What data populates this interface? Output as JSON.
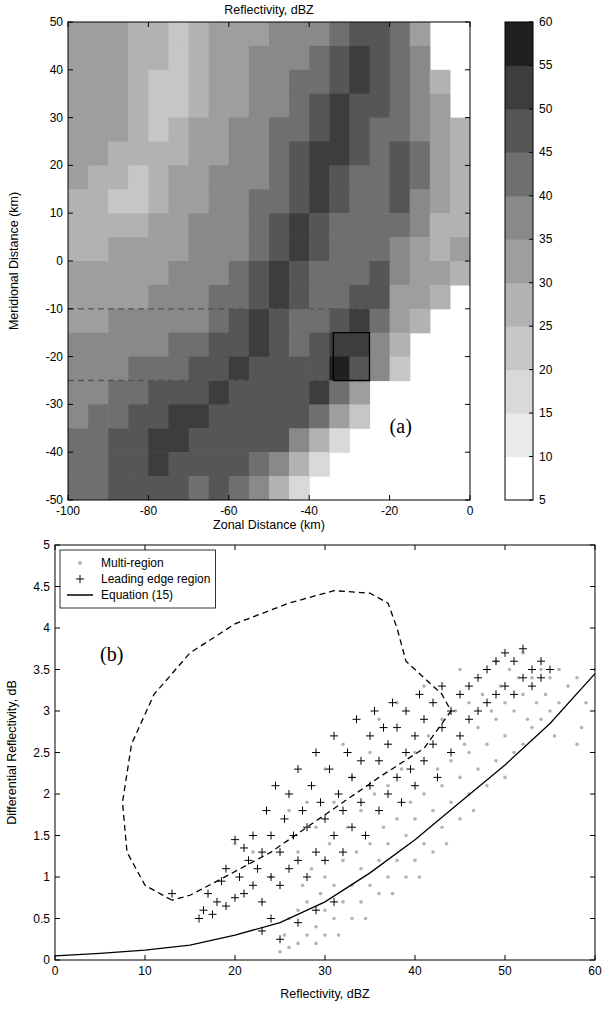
{
  "chart_data": [
    {
      "type": "heatmap",
      "title": "Reflectivity, dBZ",
      "x_label": "Zonal Distance (km)",
      "y_label": "Meridional Distance (km)",
      "annotation": "(a)",
      "xlim": [
        -100,
        0
      ],
      "ylim": [
        -50,
        50
      ],
      "xticks": [
        -100,
        -80,
        -60,
        -40,
        -20,
        0
      ],
      "yticks": [
        -50,
        -40,
        -30,
        -20,
        -10,
        0,
        10,
        20,
        30,
        40,
        50
      ],
      "cells": [
        [
          32,
          30,
          30,
          28,
          25,
          22,
          25,
          30,
          32,
          33,
          35,
          35,
          38,
          42,
          48,
          45,
          40,
          30,
          null,
          null
        ],
        [
          32,
          32,
          30,
          28,
          25,
          22,
          25,
          30,
          33,
          35,
          35,
          38,
          40,
          45,
          50,
          48,
          40,
          35,
          null,
          null
        ],
        [
          33,
          32,
          30,
          27,
          22,
          20,
          25,
          30,
          33,
          35,
          37,
          40,
          42,
          48,
          50,
          45,
          42,
          35,
          25,
          null
        ],
        [
          33,
          33,
          30,
          25,
          22,
          22,
          27,
          32,
          33,
          35,
          38,
          40,
          45,
          50,
          48,
          45,
          40,
          35,
          30,
          null
        ],
        [
          33,
          33,
          30,
          25,
          22,
          25,
          30,
          32,
          35,
          37,
          40,
          42,
          48,
          52,
          48,
          42,
          40,
          38,
          30,
          25
        ],
        [
          32,
          30,
          28,
          25,
          25,
          28,
          30,
          33,
          35,
          38,
          40,
          45,
          50,
          50,
          45,
          42,
          45,
          40,
          30,
          25
        ],
        [
          30,
          28,
          25,
          22,
          25,
          30,
          32,
          35,
          35,
          38,
          42,
          47,
          52,
          48,
          42,
          40,
          45,
          42,
          32,
          28
        ],
        [
          28,
          25,
          22,
          22,
          27,
          30,
          33,
          35,
          37,
          40,
          42,
          48,
          50,
          45,
          40,
          42,
          45,
          38,
          30,
          25
        ],
        [
          27,
          25,
          25,
          27,
          30,
          32,
          35,
          35,
          38,
          40,
          45,
          50,
          48,
          42,
          40,
          42,
          40,
          35,
          28,
          25
        ],
        [
          28,
          28,
          30,
          30,
          32,
          33,
          35,
          37,
          38,
          42,
          47,
          50,
          45,
          40,
          40,
          42,
          38,
          30,
          28,
          30
        ],
        [
          30,
          30,
          32,
          32,
          33,
          35,
          35,
          38,
          40,
          45,
          50,
          48,
          42,
          40,
          42,
          45,
          35,
          30,
          30,
          28
        ],
        [
          32,
          32,
          33,
          33,
          35,
          35,
          37,
          40,
          42,
          48,
          50,
          45,
          40,
          42,
          48,
          45,
          32,
          30,
          28,
          null
        ],
        [
          33,
          33,
          35,
          35,
          35,
          37,
          38,
          42,
          45,
          50,
          48,
          42,
          42,
          48,
          50,
          40,
          30,
          28,
          null,
          null
        ],
        [
          35,
          35,
          35,
          37,
          38,
          40,
          42,
          45,
          48,
          50,
          45,
          42,
          45,
          50,
          52,
          38,
          28,
          null,
          null,
          null
        ],
        [
          35,
          37,
          38,
          40,
          40,
          42,
          45,
          48,
          50,
          48,
          45,
          45,
          48,
          55,
          45,
          35,
          22,
          null,
          null,
          null
        ],
        [
          37,
          38,
          40,
          42,
          45,
          47,
          48,
          50,
          48,
          47,
          45,
          48,
          50,
          42,
          30,
          null,
          null,
          null,
          null,
          null
        ],
        [
          38,
          40,
          42,
          45,
          48,
          50,
          50,
          48,
          47,
          45,
          47,
          48,
          40,
          30,
          20,
          null,
          null,
          null,
          null,
          null
        ],
        [
          40,
          42,
          45,
          48,
          50,
          52,
          48,
          47,
          45,
          45,
          45,
          38,
          28,
          18,
          null,
          null,
          null,
          null,
          null,
          null
        ],
        [
          40,
          42,
          45,
          48,
          50,
          48,
          45,
          45,
          45,
          42,
          35,
          25,
          15,
          null,
          null,
          null,
          null,
          null,
          null,
          null
        ],
        [
          40,
          42,
          45,
          48,
          48,
          45,
          43,
          45,
          42,
          35,
          25,
          15,
          null,
          null,
          null,
          null,
          null,
          null,
          null,
          null
        ]
      ],
      "colorbar": {
        "range": [
          5,
          60
        ],
        "ticks": [
          5,
          10,
          15,
          20,
          25,
          30,
          35,
          40,
          45,
          50,
          55,
          60
        ],
        "colors": [
          "#ffffff",
          "#ebebeb",
          "#d9d9d9",
          "#c6c6c6",
          "#b2b2b2",
          "#9e9e9e",
          "#898989",
          "#6f6f6f",
          "#565656",
          "#3d3d3d",
          "#202020"
        ]
      },
      "series": [
        {
          "type": "line",
          "line_style": "dashed",
          "color": "#555555",
          "x": [
            -100,
            -25
          ],
          "values": [
            -10,
            -10
          ]
        },
        {
          "type": "line",
          "line_style": "dashed",
          "color": "#555555",
          "x": [
            -100,
            -25
          ],
          "values": [
            -25,
            -25
          ]
        },
        {
          "type": "line",
          "line_style": "solid",
          "color": "#000000",
          "x": [
            -34,
            -25,
            -25,
            -34,
            -34
          ],
          "values": [
            -25,
            -25,
            -15,
            -15,
            -25
          ]
        }
      ]
    },
    {
      "type": "scatter",
      "x_label": "Reflectivity, dBZ",
      "y_label": "Differential Reflectivity, dB",
      "annotation": "(b)",
      "legend": "upper left",
      "xlim": [
        0,
        60
      ],
      "ylim": [
        0,
        5
      ],
      "xticks": [
        0,
        10,
        20,
        30,
        40,
        50,
        60
      ],
      "yticks": [
        0,
        0.5,
        1,
        1.5,
        2,
        2.5,
        3,
        3.5,
        4,
        4.5,
        5
      ],
      "series": [
        {
          "name": "Multi-region",
          "type": "scatter",
          "marker": "dot",
          "color": "#b4b4b4",
          "x": [
            25,
            25.5,
            26,
            26,
            27,
            27,
            27.5,
            28,
            28,
            28.5,
            29,
            29,
            29.5,
            30,
            30,
            30,
            30.5,
            31,
            31,
            31.5,
            32,
            32,
            32.5,
            33,
            33,
            33.5,
            34,
            34,
            34,
            34.5,
            35,
            35,
            35.5,
            36,
            36,
            36.5,
            37,
            37,
            37,
            37.5,
            38,
            38,
            38.5,
            39,
            39,
            39.5,
            40,
            40,
            40,
            40.5,
            41,
            41,
            41.5,
            42,
            42,
            42.5,
            43,
            43,
            43,
            43.5,
            44,
            44,
            44.5,
            45,
            45,
            45.5,
            46,
            46,
            46,
            46.5,
            47,
            47,
            47.5,
            48,
            48,
            48.5,
            49,
            49,
            49.5,
            50,
            50,
            50,
            50.5,
            51,
            51,
            51.5,
            52,
            52,
            52.5,
            53,
            53,
            53.5,
            54,
            54,
            54.5,
            55,
            55,
            55.5,
            56,
            56,
            57,
            58,
            58,
            59,
            60,
            58.5,
            27,
            29,
            31,
            33,
            35,
            28,
            32,
            36,
            38,
            41,
            45,
            49,
            52,
            24,
            22,
            20,
            26,
            30
          ],
          "values": [
            0.1,
            0.3,
            0.5,
            0.15,
            0.2,
            0.6,
            0.9,
            0.3,
            0.7,
            1.1,
            0.4,
            0.2,
            0.8,
            0.3,
            0.6,
            1.0,
            1.4,
            0.5,
            0.9,
            0.3,
            0.7,
            1.2,
            1.6,
            0.5,
            0.9,
            1.3,
            0.7,
            1.1,
            1.8,
            0.5,
            0.9,
            1.4,
            2.0,
            0.8,
            1.2,
            1.6,
            1.0,
            1.4,
            2.1,
            0.8,
            1.2,
            1.7,
            2.3,
            1.0,
            1.5,
            1.9,
            1.2,
            1.7,
            2.5,
            1.0,
            1.4,
            2.0,
            2.7,
            1.3,
            1.8,
            2.3,
            1.6,
            2.1,
            2.9,
            1.4,
            1.9,
            2.4,
            3.0,
            1.7,
            2.2,
            2.6,
            2.0,
            2.5,
            3.1,
            1.8,
            2.3,
            2.8,
            3.2,
            2.1,
            2.6,
            3.0,
            2.4,
            2.9,
            3.3,
            2.2,
            2.7,
            3.1,
            3.5,
            2.5,
            3.0,
            3.4,
            2.6,
            3.2,
            2.9,
            2.8,
            3.4,
            3.1,
            2.9,
            3.5,
            3.2,
            3.0,
            3.4,
            2.7,
            3.1,
            3.5,
            3.3,
            3.4,
            2.6,
            3.1,
            3.5,
            2.8,
            1.3,
            1.6,
            1.9,
            2.2,
            2.5,
            1.9,
            2.6,
            2.9,
            3.1,
            3.3,
            3.5,
            3.6,
            3.7,
            1.0,
            1.3,
            1.4,
            1.8,
            2.3
          ]
        },
        {
          "name": "Leading edge region",
          "type": "scatter",
          "marker": "plus",
          "color": "#000000",
          "x": [
            13,
            16,
            16.5,
            17,
            17.5,
            18,
            18.5,
            19,
            19,
            20,
            20,
            20.5,
            21,
            21,
            21.5,
            22,
            22,
            22.5,
            23,
            23,
            23.5,
            24,
            24,
            24.5,
            25,
            25,
            25.5,
            26,
            26,
            26.5,
            27,
            27,
            27.5,
            28,
            28,
            28.5,
            29,
            29,
            29.5,
            30,
            30,
            30.5,
            31,
            31,
            31.5,
            32,
            32,
            32.5,
            33,
            33,
            33.5,
            34,
            34,
            34.5,
            35,
            35,
            35.5,
            36,
            36,
            36.5,
            37,
            37,
            37.5,
            38,
            38,
            38.5,
            39,
            39,
            39.5,
            40,
            40,
            40.5,
            41,
            41,
            42,
            42,
            42.5,
            43,
            43,
            44,
            44,
            45,
            45,
            46,
            46,
            47,
            47,
            48,
            48,
            49,
            49,
            50,
            50,
            51,
            51,
            52,
            52,
            53,
            53,
            54,
            54,
            55,
            23,
            25,
            27,
            29,
            31,
            24
          ],
          "values": [
            0.8,
            0.5,
            0.6,
            0.8,
            0.55,
            0.7,
            0.95,
            0.65,
            1.1,
            0.75,
            1.45,
            1.0,
            0.8,
            1.35,
            1.2,
            0.9,
            1.5,
            1.1,
            0.7,
            1.3,
            1.8,
            1.0,
            1.5,
            2.1,
            0.9,
            1.3,
            1.7,
            1.1,
            2.0,
            1.5,
            1.2,
            2.3,
            1.8,
            1.0,
            1.6,
            2.1,
            1.3,
            2.5,
            1.9,
            1.2,
            1.7,
            2.3,
            1.5,
            2.7,
            2.0,
            1.3,
            1.8,
            2.5,
            1.6,
            2.2,
            2.9,
            1.9,
            2.4,
            1.5,
            2.1,
            2.7,
            3.0,
            1.8,
            2.4,
            2.8,
            2.0,
            2.6,
            3.1,
            2.2,
            2.8,
            1.9,
            2.5,
            3.0,
            2.3,
            2.1,
            2.7,
            3.2,
            2.4,
            2.9,
            2.6,
            3.1,
            2.2,
            2.8,
            3.3,
            2.5,
            3.0,
            2.7,
            3.2,
            2.9,
            3.3,
            3.0,
            3.4,
            3.1,
            3.5,
            3.2,
            3.6,
            3.3,
            3.7,
            3.2,
            3.6,
            3.4,
            3.75,
            3.5,
            3.3,
            3.6,
            3.4,
            3.5,
            0.35,
            0.25,
            0.45,
            0.6,
            0.7,
            0.5
          ]
        },
        {
          "name": "Equation (15)",
          "type": "line",
          "line_style": "solid",
          "color": "#000000",
          "x": [
            0,
            5,
            10,
            15,
            20,
            25,
            30,
            35,
            40,
            45,
            50,
            55,
            60
          ],
          "values": [
            0.05,
            0.08,
            0.12,
            0.18,
            0.3,
            0.45,
            0.7,
            1.05,
            1.45,
            1.9,
            2.35,
            2.85,
            3.45
          ]
        },
        {
          "type": "line",
          "line_style": "dashed",
          "color": "#000000",
          "x": [
            13,
            10,
            8,
            7.5,
            8.5,
            11,
            15,
            20,
            26,
            31,
            35,
            37,
            38,
            39,
            43,
            44,
            41,
            36,
            30,
            24,
            18,
            15,
            13
          ],
          "values": [
            0.72,
            0.9,
            1.3,
            1.9,
            2.6,
            3.2,
            3.7,
            4.05,
            4.3,
            4.45,
            4.42,
            4.3,
            4.0,
            3.6,
            3.2,
            3.0,
            2.55,
            2.2,
            1.75,
            1.3,
            0.95,
            0.78,
            0.72
          ]
        }
      ]
    }
  ]
}
